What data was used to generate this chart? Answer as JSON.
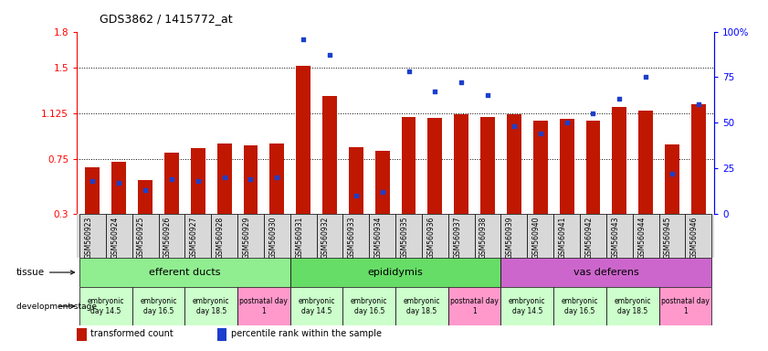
{
  "title": "GDS3862 / 1415772_at",
  "samples": [
    "GSM560923",
    "GSM560924",
    "GSM560925",
    "GSM560926",
    "GSM560927",
    "GSM560928",
    "GSM560929",
    "GSM560930",
    "GSM560931",
    "GSM560932",
    "GSM560933",
    "GSM560934",
    "GSM560935",
    "GSM560936",
    "GSM560937",
    "GSM560938",
    "GSM560939",
    "GSM560940",
    "GSM560941",
    "GSM560942",
    "GSM560943",
    "GSM560944",
    "GSM560945",
    "GSM560946"
  ],
  "bar_values": [
    0.68,
    0.73,
    0.58,
    0.8,
    0.84,
    0.88,
    0.86,
    0.88,
    1.52,
    1.27,
    0.85,
    0.82,
    1.1,
    1.09,
    1.12,
    1.1,
    1.12,
    1.07,
    1.08,
    1.07,
    1.18,
    1.15,
    0.87,
    1.2
  ],
  "dot_values": [
    18,
    17,
    13,
    19,
    18,
    20,
    19,
    20,
    96,
    87,
    10,
    12,
    78,
    67,
    72,
    65,
    48,
    44,
    50,
    55,
    63,
    75,
    22,
    60
  ],
  "ylim_left": [
    0.3,
    1.8
  ],
  "ylim_right": [
    0,
    100
  ],
  "yticks_left": [
    0.3,
    0.75,
    1.125,
    1.5,
    1.8
  ],
  "yticks_right": [
    0,
    25,
    50,
    75,
    100
  ],
  "ytick_labels_left": [
    "0.3",
    "0.75",
    "1.125",
    "1.5",
    "1.8"
  ],
  "ytick_labels_right": [
    "0",
    "25",
    "50",
    "75",
    "100%"
  ],
  "hlines": [
    0.75,
    1.125,
    1.5
  ],
  "bar_color": "#C01800",
  "dot_color": "#1C3FCC",
  "tissue_groups": [
    {
      "label": "efferent ducts",
      "start": 0,
      "end": 7,
      "color": "#90EE90"
    },
    {
      "label": "epididymis",
      "start": 8,
      "end": 15,
      "color": "#66DD66"
    },
    {
      "label": "vas deferens",
      "start": 16,
      "end": 23,
      "color": "#CC66CC"
    }
  ],
  "dev_stage_groups": [
    {
      "label": "embryonic\nday 14.5",
      "start": 0,
      "end": 1,
      "color": "#CCFFCC"
    },
    {
      "label": "embryonic\nday 16.5",
      "start": 2,
      "end": 3,
      "color": "#CCFFCC"
    },
    {
      "label": "embryonic\nday 18.5",
      "start": 4,
      "end": 5,
      "color": "#CCFFCC"
    },
    {
      "label": "postnatal day\n1",
      "start": 6,
      "end": 7,
      "color": "#FF99CC"
    },
    {
      "label": "embryonic\nday 14.5",
      "start": 8,
      "end": 9,
      "color": "#CCFFCC"
    },
    {
      "label": "embryonic\nday 16.5",
      "start": 10,
      "end": 11,
      "color": "#CCFFCC"
    },
    {
      "label": "embryonic\nday 18.5",
      "start": 12,
      "end": 13,
      "color": "#CCFFCC"
    },
    {
      "label": "postnatal day\n1",
      "start": 14,
      "end": 15,
      "color": "#FF99CC"
    },
    {
      "label": "embryonic\nday 14.5",
      "start": 16,
      "end": 17,
      "color": "#CCFFCC"
    },
    {
      "label": "embryonic\nday 16.5",
      "start": 18,
      "end": 19,
      "color": "#CCFFCC"
    },
    {
      "label": "embryonic\nday 18.5",
      "start": 20,
      "end": 21,
      "color": "#CCFFCC"
    },
    {
      "label": "postnatal day\n1",
      "start": 22,
      "end": 23,
      "color": "#FF99CC"
    }
  ],
  "tissue_label": "tissue",
  "dev_label": "development stage",
  "legend_bar": "transformed count",
  "legend_dot": "percentile rank within the sample",
  "bar_width": 0.55,
  "xticklabel_bg": "#D8D8D8"
}
